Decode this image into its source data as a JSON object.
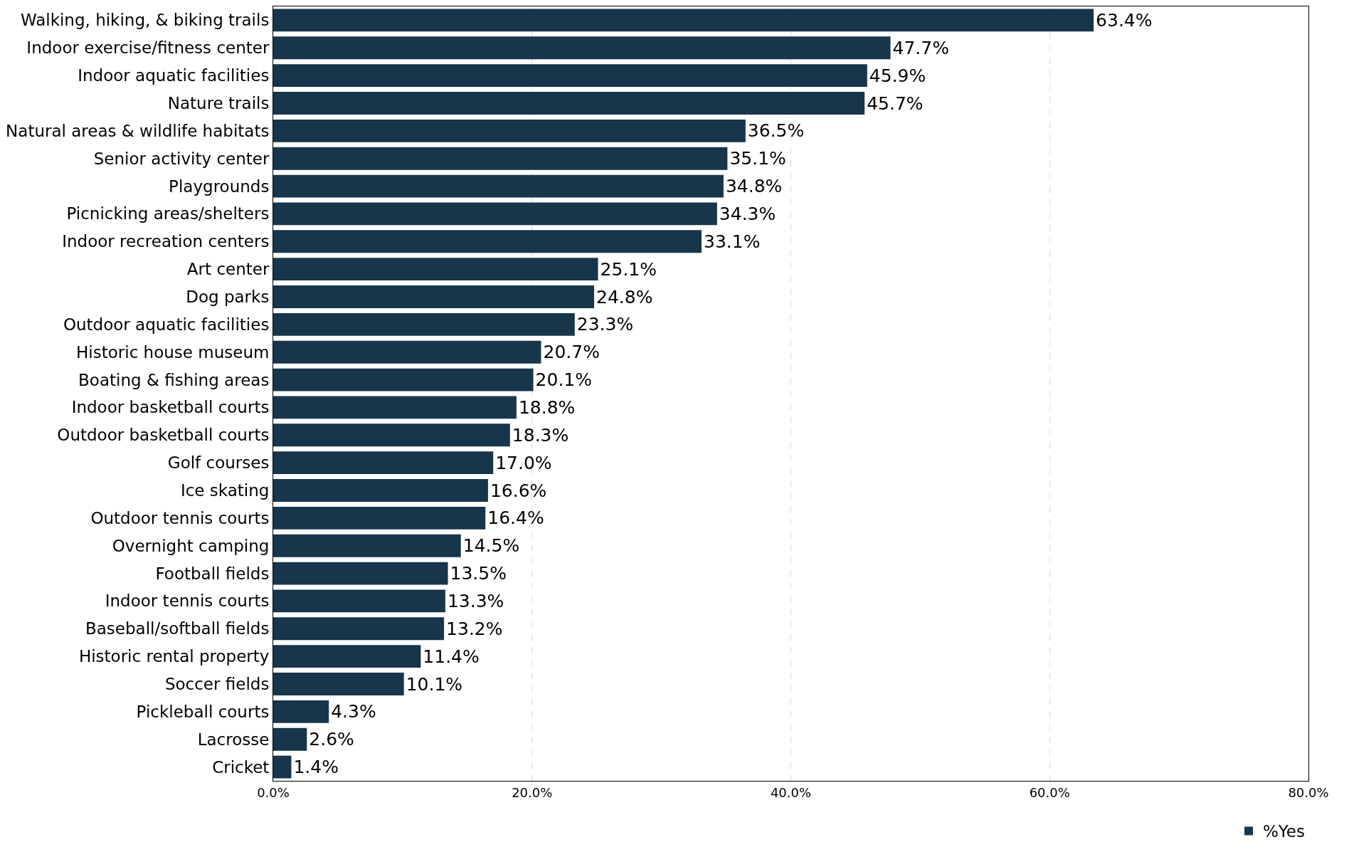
{
  "chart_data": {
    "type": "bar",
    "orientation": "horizontal",
    "categories": [
      "Walking, hiking, & biking trails",
      "Indoor exercise/fitness center",
      "Indoor aquatic facilities",
      "Nature trails",
      "Natural areas & wildlife habitats",
      "Senior activity center",
      "Playgrounds",
      "Picnicking areas/shelters",
      "Indoor recreation centers",
      "Art center",
      "Dog parks",
      "Outdoor aquatic facilities",
      "Historic house museum",
      "Boating & fishing areas",
      "Indoor basketball courts",
      "Outdoor basketball courts",
      "Golf courses",
      "Ice skating",
      "Outdoor tennis courts",
      "Overnight camping",
      "Football fields",
      "Indoor tennis courts",
      "Baseball/softball fields",
      "Historic rental property",
      "Soccer fields",
      "Pickleball courts",
      "Lacrosse",
      "Cricket"
    ],
    "series": [
      {
        "name": "%Yes",
        "color": "#17354b",
        "values": [
          63.4,
          47.7,
          45.9,
          45.7,
          36.5,
          35.1,
          34.8,
          34.3,
          33.1,
          25.1,
          24.8,
          23.3,
          20.7,
          20.1,
          18.8,
          18.3,
          17.0,
          16.6,
          16.4,
          14.5,
          13.5,
          13.3,
          13.2,
          11.4,
          10.1,
          4.3,
          2.6,
          1.4
        ],
        "value_labels": [
          "63.4%",
          "47.7%",
          "45.9%",
          "45.7%",
          "36.5%",
          "35.1%",
          "34.8%",
          "34.3%",
          "33.1%",
          "25.1%",
          "24.8%",
          "23.3%",
          "20.7%",
          "20.1%",
          "18.8%",
          "18.3%",
          "17.0%",
          "16.6%",
          "16.4%",
          "14.5%",
          "13.5%",
          "13.3%",
          "13.2%",
          "11.4%",
          "10.1%",
          "4.3%",
          "2.6%",
          "1.4%"
        ]
      }
    ],
    "xlim": [
      0,
      80
    ],
    "xticks": [
      {
        "value": 0,
        "label": "0.0%"
      },
      {
        "value": 20,
        "label": "20.0%"
      },
      {
        "value": 40,
        "label": "40.0%"
      },
      {
        "value": 60,
        "label": "60.0%"
      },
      {
        "value": 80,
        "label": "80.0%"
      }
    ],
    "grid": "x",
    "legend": "bottom right"
  }
}
